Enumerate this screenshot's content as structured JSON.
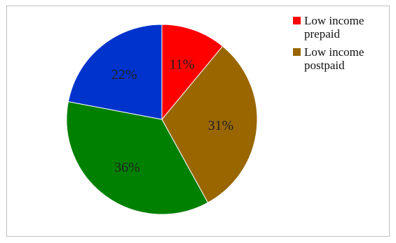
{
  "chart_data": {
    "type": "pie",
    "title": "",
    "slices": [
      {
        "label": "Low income prepaid",
        "value": 11,
        "display": "11%",
        "color": "#ff0000"
      },
      {
        "label": "Low income postpaid",
        "value": 31,
        "display": "31%",
        "color": "#996600"
      },
      {
        "label": "",
        "value": 36,
        "display": "36%",
        "color": "#008000"
      },
      {
        "label": "",
        "value": 22,
        "display": "22%",
        "color": "#0033cc"
      }
    ],
    "start_angle_deg": 0,
    "direction": "clockwise",
    "legend": {
      "placement": "top-right",
      "items": [
        {
          "label": "Low income prepaid",
          "color": "#ff0000"
        },
        {
          "label": "Low income postpaid",
          "color": "#996600"
        }
      ]
    }
  }
}
